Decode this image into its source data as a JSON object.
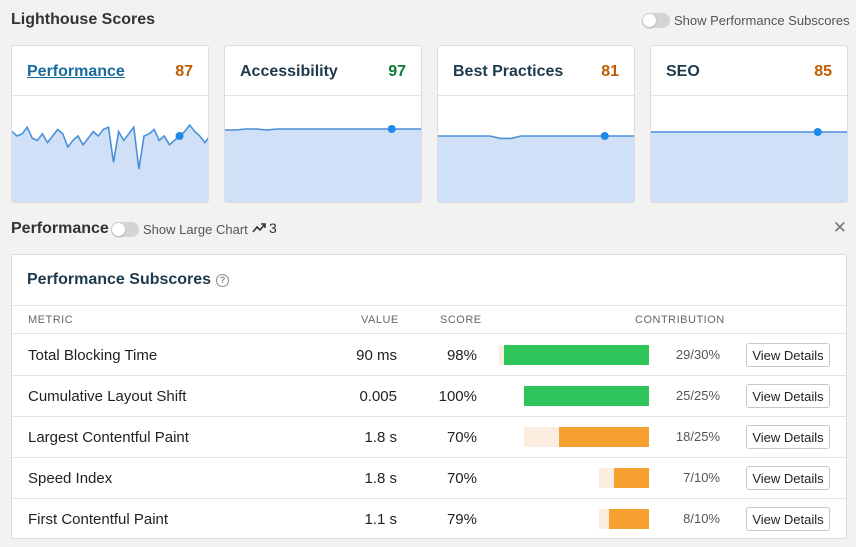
{
  "header": {
    "title": "Lighthouse Scores",
    "subscores_toggle_label": "Show Performance Subscores"
  },
  "cards": [
    {
      "label": "Performance",
      "score": "87",
      "score_color": "#c05c00",
      "series": [
        62,
        60,
        61,
        64,
        59,
        58,
        61,
        57,
        60,
        63,
        61,
        55,
        58,
        60,
        56,
        59,
        62,
        60,
        63,
        64,
        48,
        62,
        58,
        61,
        64,
        45,
        60,
        61,
        63,
        58,
        60,
        56,
        58,
        60,
        62,
        65,
        62,
        60,
        57,
        60
      ]
    },
    {
      "label": "Accessibility",
      "score": "97",
      "score_color": "#0c7a36",
      "series": [
        95,
        95,
        96,
        96,
        95,
        96,
        96,
        96,
        96,
        96,
        96,
        96,
        96,
        96,
        96,
        96,
        96,
        96,
        96,
        96
      ]
    },
    {
      "label": "Best Practices",
      "score": "81",
      "score_color": "#c05c00",
      "series": [
        81,
        81,
        81,
        81,
        81,
        81,
        79,
        79,
        81,
        81,
        81,
        81,
        81,
        81,
        81,
        81,
        81,
        81,
        81,
        81
      ]
    },
    {
      "label": "SEO",
      "score": "85",
      "score_color": "#c05c00",
      "series": [
        85,
        85,
        85,
        85,
        85,
        85,
        85,
        85,
        85,
        85,
        85,
        85,
        85,
        85,
        85,
        85,
        85,
        85,
        85,
        85
      ]
    }
  ],
  "perf_section": {
    "title": "Performance",
    "large_chart_label": "Show Large Chart",
    "trend_count": "3"
  },
  "subscores": {
    "title": "Performance Subscores",
    "columns": {
      "metric": "METRIC",
      "value": "VALUE",
      "score": "SCORE",
      "contribution": "CONTRIBUTION"
    },
    "button_label": "View Details",
    "rows": [
      {
        "metric": "Total Blocking Time",
        "value": "90 ms",
        "score": "98%",
        "contribution": "29/30%",
        "earned": 29,
        "max": 30,
        "color": "#2ec55a"
      },
      {
        "metric": "Cumulative Layout Shift",
        "value": "0.005",
        "score": "100%",
        "contribution": "25/25%",
        "earned": 25,
        "max": 25,
        "color": "#2ec55a"
      },
      {
        "metric": "Largest Contentful Paint",
        "value": "1.8 s",
        "score": "70%",
        "contribution": "18/25%",
        "earned": 18,
        "max": 25,
        "color": "#f5a031"
      },
      {
        "metric": "Speed Index",
        "value": "1.8 s",
        "score": "70%",
        "contribution": "7/10%",
        "earned": 7,
        "max": 10,
        "color": "#f5a031"
      },
      {
        "metric": "First Contentful Paint",
        "value": "1.1 s",
        "score": "79%",
        "contribution": "8/10%",
        "earned": 8,
        "max": 10,
        "color": "#f5a031"
      }
    ]
  },
  "colors": {
    "chart_line": "#4a90d9",
    "chart_fill": "#cfe0f7",
    "dot": "#1e8be8"
  }
}
